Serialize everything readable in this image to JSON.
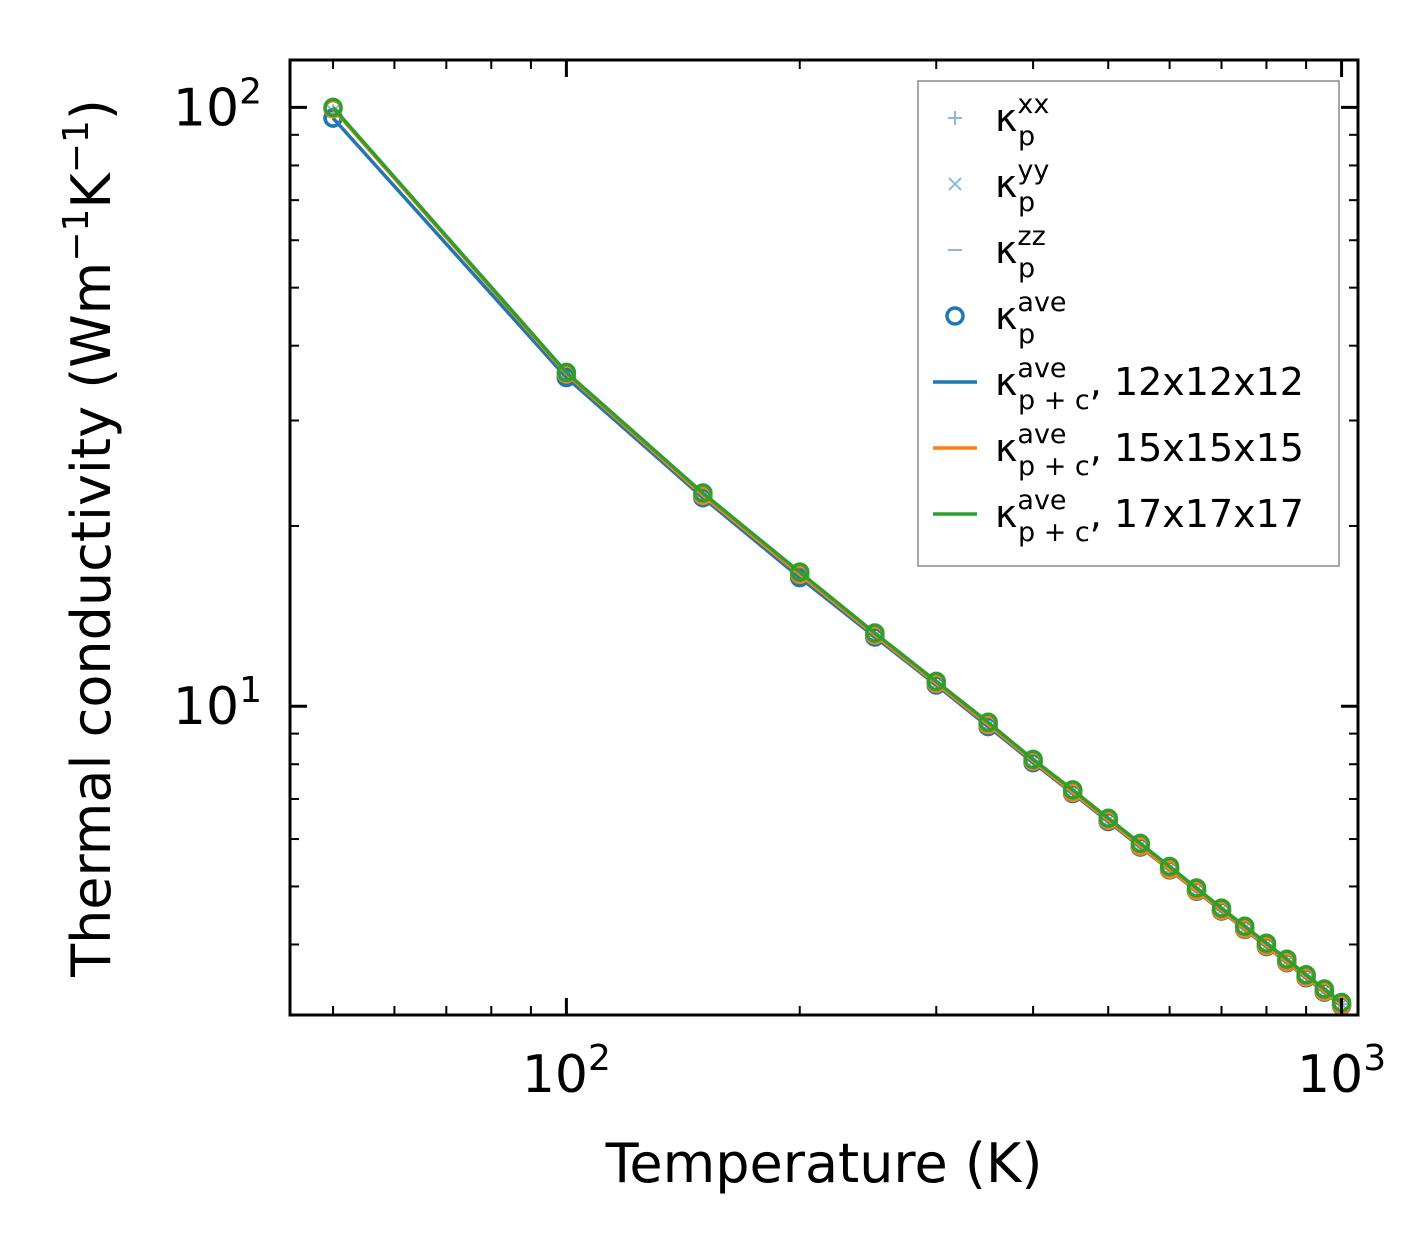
{
  "chart_data": {
    "type": "line",
    "xscale": "log",
    "yscale": "log",
    "xlabel": "Temperature (K)",
    "ylabel": {
      "main": "Thermal conductivity (Wm",
      "sup1": "−1",
      "mid": "K",
      "sup2": "−1",
      "end": ")"
    },
    "xlim": [
      44,
      1050
    ],
    "ylim": [
      3.05,
      120
    ],
    "x_major_ticks": [
      {
        "base": "10",
        "exp": "2",
        "value": 100
      },
      {
        "base": "10",
        "exp": "3",
        "value": 1000
      }
    ],
    "y_major_ticks": [
      {
        "base": "10",
        "exp": "1",
        "value": 10
      },
      {
        "base": "10",
        "exp": "2",
        "value": 100
      }
    ],
    "x": [
      50,
      100,
      150,
      200,
      250,
      300,
      350,
      400,
      450,
      500,
      550,
      600,
      650,
      700,
      750,
      800,
      850,
      900,
      950,
      1000
    ],
    "series": [
      {
        "name": "kp_xx",
        "marker": "+",
        "color": "#8fb9db",
        "values": [
          98.5,
          35.6,
          22.4,
          16.5,
          13.1,
          10.9,
          9.3,
          8.1,
          7.2,
          6.45,
          5.85,
          5.35,
          4.93,
          4.57,
          4.26,
          3.99,
          3.75,
          3.54,
          3.35,
          3.18
        ]
      },
      {
        "name": "kp_yy",
        "marker": "x",
        "color": "#8fb9db",
        "values": [
          98.5,
          35.6,
          22.4,
          16.5,
          13.1,
          10.9,
          9.3,
          8.1,
          7.2,
          6.45,
          5.85,
          5.35,
          4.93,
          4.57,
          4.26,
          3.99,
          3.75,
          3.54,
          3.35,
          3.18
        ]
      },
      {
        "name": "kp_zz",
        "marker": "_",
        "color": "#8fb9db",
        "values": [
          98.5,
          35.6,
          22.4,
          16.5,
          13.1,
          10.9,
          9.3,
          8.1,
          7.2,
          6.45,
          5.85,
          5.35,
          4.93,
          4.57,
          4.26,
          3.99,
          3.75,
          3.54,
          3.35,
          3.18
        ]
      },
      {
        "name": "kp_ave",
        "marker": "o",
        "color": "#1f77b4",
        "values": [
          96.0,
          35.4,
          22.3,
          16.4,
          13.05,
          10.85,
          9.25,
          8.05,
          7.15,
          6.42,
          5.82,
          5.33,
          4.91,
          4.55,
          4.24,
          3.97,
          3.73,
          3.52,
          3.33,
          3.16
        ]
      },
      {
        "name": "kpc_ave_12",
        "marker": "line",
        "color": "#1f77b4",
        "values": [
          96.0,
          35.4,
          22.3,
          16.4,
          13.05,
          10.85,
          9.25,
          8.05,
          7.15,
          6.42,
          5.82,
          5.33,
          4.91,
          4.55,
          4.24,
          3.97,
          3.73,
          3.52,
          3.33,
          3.16
        ]
      },
      {
        "name": "kpc_ave_15",
        "marker": "line",
        "color": "#ff7f0e",
        "values": [
          99.5,
          35.9,
          22.5,
          16.6,
          13.15,
          10.92,
          9.32,
          8.1,
          7.18,
          6.45,
          5.84,
          5.34,
          4.92,
          4.56,
          4.25,
          3.98,
          3.74,
          3.53,
          3.34,
          3.17
        ]
      },
      {
        "name": "kpc_ave_17",
        "marker": "line",
        "color": "#2ca02c",
        "values": [
          100.0,
          36.1,
          22.7,
          16.75,
          13.25,
          11.0,
          9.4,
          8.15,
          7.25,
          6.5,
          5.9,
          5.4,
          4.97,
          4.6,
          4.29,
          4.02,
          3.78,
          3.56,
          3.37,
          3.2
        ]
      }
    ],
    "legend": {
      "position": "top-right",
      "entries": [
        {
          "marker": "+",
          "color": "#8fb9db",
          "base": "κ",
          "sup": "xx",
          "sub": "p",
          "suffix": ""
        },
        {
          "marker": "x",
          "color": "#8fb9db",
          "base": "κ",
          "sup": "yy",
          "sub": "p",
          "suffix": ""
        },
        {
          "marker": "_",
          "color": "#8fb9db",
          "base": "κ",
          "sup": "zz",
          "sub": "p",
          "suffix": ""
        },
        {
          "marker": "o",
          "color": "#1f77b4",
          "base": "κ",
          "sup": "ave",
          "sub": "p",
          "suffix": ""
        },
        {
          "marker": "line",
          "color": "#1f77b4",
          "base": "κ",
          "sup": "ave",
          "sub": "p + c",
          "suffix": ", 12x12x12"
        },
        {
          "marker": "line",
          "color": "#ff7f0e",
          "base": "κ",
          "sup": "ave",
          "sub": "p + c",
          "suffix": ", 15x15x15"
        },
        {
          "marker": "line",
          "color": "#2ca02c",
          "base": "κ",
          "sup": "ave",
          "sub": "p + c",
          "suffix": ", 17x17x17"
        }
      ]
    }
  }
}
